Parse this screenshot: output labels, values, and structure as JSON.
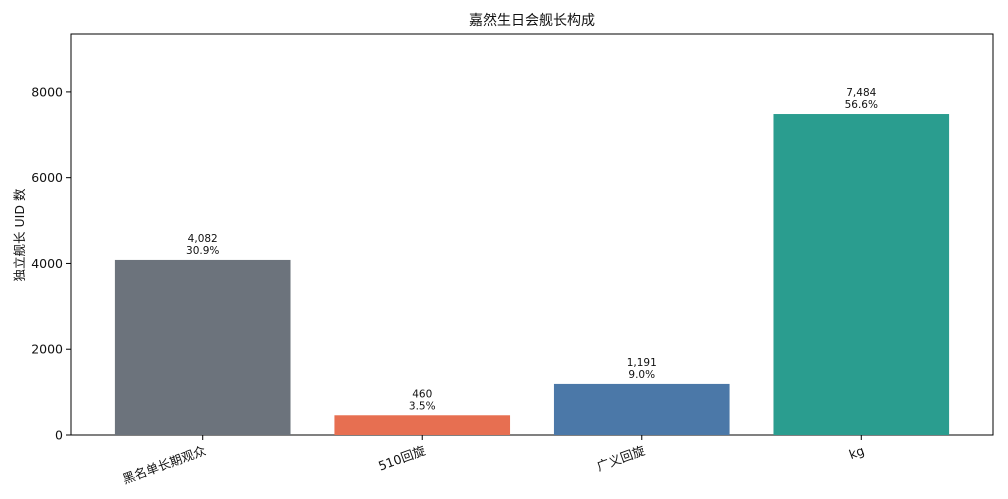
{
  "chart_data": {
    "type": "bar",
    "title": "嘉然生日会舰长构成",
    "xlabel": "",
    "ylabel": "独立舰长 UID 数",
    "categories": [
      "黑名单长期观众",
      "510回旋",
      "广义回旋",
      "kg"
    ],
    "values": [
      4082,
      460,
      1191,
      7484
    ],
    "value_labels": [
      "4,082",
      "460",
      "1,191",
      "7,484"
    ],
    "percent_labels": [
      "30.9%",
      "3.5%",
      "9.0%",
      "56.6%"
    ],
    "colors": [
      "#6c737c",
      "#e76f51",
      "#4b78a8",
      "#2a9d8f"
    ],
    "ylim": [
      0,
      9350
    ],
    "yticks": [
      0,
      2000,
      4000,
      6000,
      8000
    ],
    "ytick_labels": [
      "0",
      "2000",
      "4000",
      "6000",
      "8000"
    ],
    "grid": false,
    "legend": "none"
  }
}
